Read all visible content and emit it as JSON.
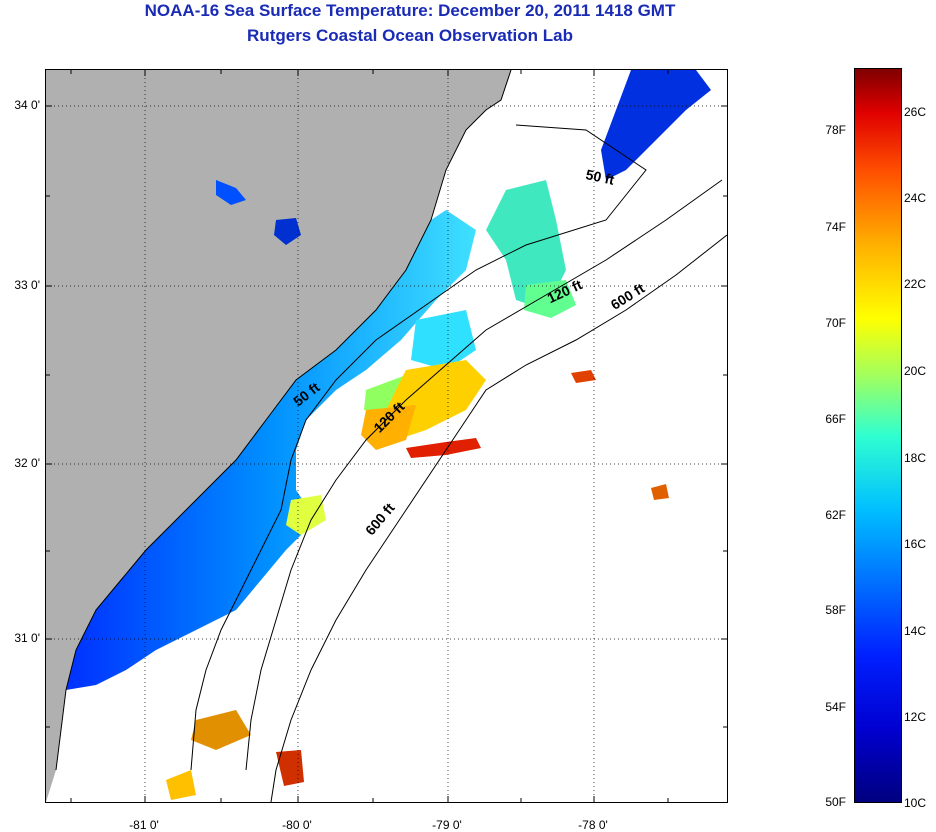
{
  "header": {
    "title": "NOAA-16 Sea Surface Temperature:  December 20, 2011 1418 GMT",
    "subtitle": "Rutgers Coastal Ocean Observation Lab"
  },
  "map": {
    "latitude_labels": [
      "34 0'",
      "33 0'",
      "32 0'",
      "31 0'"
    ],
    "longitude_labels": [
      "-81 0'",
      "-80 0'",
      "-79 0'",
      "-78 0'"
    ],
    "contour_labels": [
      "50 ft",
      "120 ft",
      "600 ft",
      "50 ft",
      "120 ft",
      "600 ft"
    ],
    "colors": {
      "land": "#b0b0b0",
      "no_data": "#ffffff"
    }
  },
  "colorbar": {
    "fahrenheit_labels": [
      "78F",
      "74F",
      "70F",
      "66F",
      "62F",
      "58F",
      "54F",
      "50F"
    ],
    "celsius_labels": [
      "26C",
      "24C",
      "22C",
      "20C",
      "18C",
      "16C",
      "14C",
      "12C",
      "10C"
    ]
  }
}
